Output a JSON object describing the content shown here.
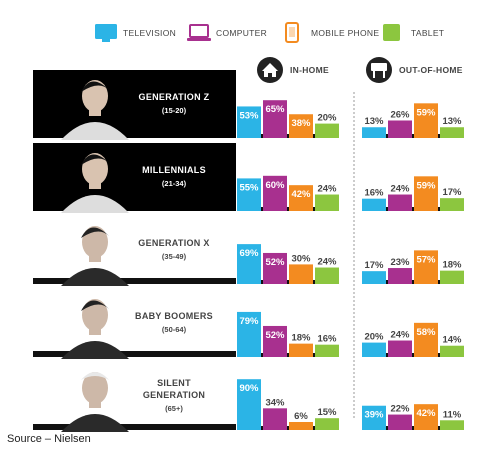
{
  "legend": [
    {
      "label": "TELEVISION",
      "color": "#2bb4e6",
      "icon": "television-icon"
    },
    {
      "label": "COMPUTER",
      "color": "#a8308f",
      "icon": "computer-icon"
    },
    {
      "label": "MOBILE PHONE",
      "color": "#f38b20",
      "icon": "mobile-phone-icon"
    },
    {
      "label": "TABLET",
      "color": "#8cc63f",
      "icon": "tablet-icon"
    }
  ],
  "headers": {
    "in_home": {
      "label": "IN-HOME",
      "icon": "house-icon"
    },
    "out_of_home": {
      "label": "OUT-OF-HOME",
      "icon": "sign-icon"
    }
  },
  "generations": [
    {
      "name": "GENERATION Z",
      "name2": "",
      "age": "(15-20)",
      "dark": true
    },
    {
      "name": "MILLENNIALS",
      "name2": "",
      "age": "(21-34)",
      "dark": true
    },
    {
      "name": "GENERATION X",
      "name2": "",
      "age": "(35-49)",
      "dark": false
    },
    {
      "name": "BABY BOOMERS",
      "name2": "",
      "age": "(50-64)",
      "dark": false
    },
    {
      "name": "SILENT",
      "name2": "GENERATION",
      "age": "(65+)",
      "dark": false
    }
  ],
  "chart_data": {
    "type": "bar",
    "categories": [
      "TELEVISION",
      "COMPUTER",
      "MOBILE PHONE",
      "TABLET"
    ],
    "groups": [
      "IN-HOME",
      "OUT-OF-HOME"
    ],
    "series": [
      {
        "name": "GENERATION Z",
        "in_home": [
          53,
          65,
          38,
          20
        ],
        "out_of_home": [
          13,
          26,
          59,
          13
        ]
      },
      {
        "name": "MILLENNIALS",
        "in_home": [
          55,
          60,
          42,
          24
        ],
        "out_of_home": [
          16,
          24,
          59,
          17
        ]
      },
      {
        "name": "GENERATION X",
        "in_home": [
          69,
          52,
          30,
          24
        ],
        "out_of_home": [
          17,
          23,
          57,
          18
        ]
      },
      {
        "name": "BABY BOOMERS",
        "in_home": [
          79,
          52,
          18,
          16
        ],
        "out_of_home": [
          20,
          24,
          58,
          14
        ]
      },
      {
        "name": "SILENT GENERATION",
        "in_home": [
          90,
          34,
          6,
          15
        ],
        "out_of_home": [
          39,
          22,
          42,
          11
        ]
      }
    ],
    "unit": "%",
    "ylim": [
      0,
      100
    ]
  },
  "source": "Source – Nielsen"
}
